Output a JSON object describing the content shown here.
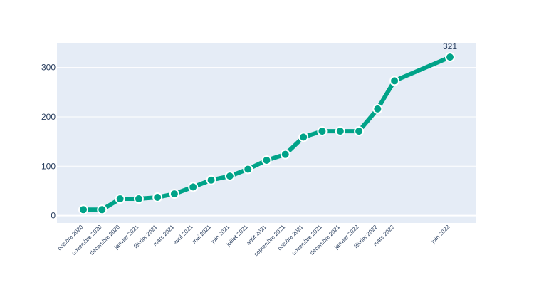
{
  "colors": {
    "plot_background": "#E5ECF6",
    "gridline": "#FFFFFF",
    "series_line": "#00A388",
    "marker_fill": "#00A388",
    "marker_outline": "#FFFFFF",
    "text": "#2a3f5f"
  },
  "chart_data": {
    "type": "line",
    "title": "",
    "xlabel": "",
    "ylabel": "",
    "ylim": [
      -15,
      350
    ],
    "yticks": [
      0,
      100,
      200,
      300
    ],
    "grid": true,
    "legend": "none",
    "x": [
      "2020-10-01",
      "2020-11-01",
      "2020-12-01",
      "2021-01-01",
      "2021-02-01",
      "2021-03-01",
      "2021-04-01",
      "2021-05-01",
      "2021-06-01",
      "2021-07-01",
      "2021-08-01",
      "2021-09-01",
      "2021-10-01",
      "2021-11-01",
      "2021-12-01",
      "2022-01-01",
      "2022-02-01",
      "2022-03-01",
      "2022-06-01"
    ],
    "tick_labels": [
      "octobre 2020",
      "novembre 2020",
      "décembre 2020",
      "janvier 2021",
      "février 2021",
      "mars 2021",
      "avril 2021",
      "mai 2021",
      "juin 2021",
      "juillet 2021",
      "août 2021",
      "septembre 2021",
      "octobre 2021",
      "novembre 2021",
      "décembre 2021",
      "janvier 2022",
      "février 2022",
      "mars 2022",
      "juin 2022"
    ],
    "series": [
      {
        "values": [
          12,
          12,
          34,
          34,
          37,
          44,
          58,
          72,
          80,
          94,
          112,
          124,
          159,
          171,
          171,
          171,
          216,
          273,
          321
        ]
      }
    ],
    "annotations": [
      {
        "x": "2022-06-01",
        "text": "321"
      }
    ]
  }
}
